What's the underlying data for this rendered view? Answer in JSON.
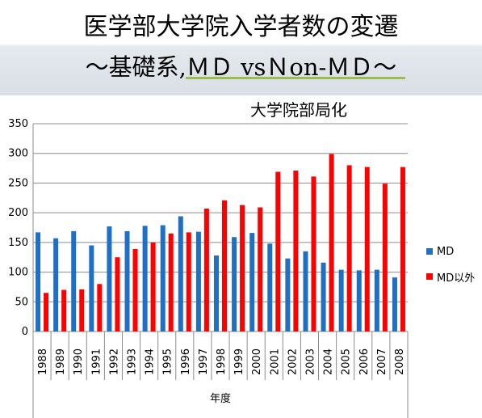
{
  "slide": {
    "title_line1": "医学部大学院入学者数の変遷",
    "title_line2": "～基礎系,ＭＤ vsＮon-ＭＤ～"
  },
  "chart_data": {
    "type": "bar",
    "title": "大学院部局化",
    "xlabel": "年度",
    "ylabel": "",
    "ylim": [
      0,
      350
    ],
    "yticks": [
      0,
      50,
      100,
      150,
      200,
      250,
      300,
      350
    ],
    "grid": true,
    "legend_position": "right",
    "categories": [
      "1988",
      "1989",
      "1990",
      "1991",
      "1992",
      "1993",
      "1994",
      "1995",
      "1996",
      "1997",
      "1998",
      "1999",
      "2000",
      "2001",
      "2002",
      "2003",
      "2004",
      "2005",
      "2006",
      "2007",
      "2008"
    ],
    "series": [
      {
        "name": "MD",
        "color": "#1f6fc5",
        "values": [
          167,
          157,
          169,
          145,
          177,
          169,
          178,
          179,
          194,
          168,
          128,
          159,
          166,
          148,
          123,
          135,
          116,
          104,
          103,
          104,
          91
        ]
      },
      {
        "name": "MD以外",
        "color": "#ff0000",
        "values": [
          65,
          70,
          71,
          80,
          125,
          139,
          150,
          165,
          167,
          207,
          221,
          213,
          209,
          269,
          271,
          261,
          299,
          280,
          277,
          249,
          277
        ]
      }
    ]
  }
}
